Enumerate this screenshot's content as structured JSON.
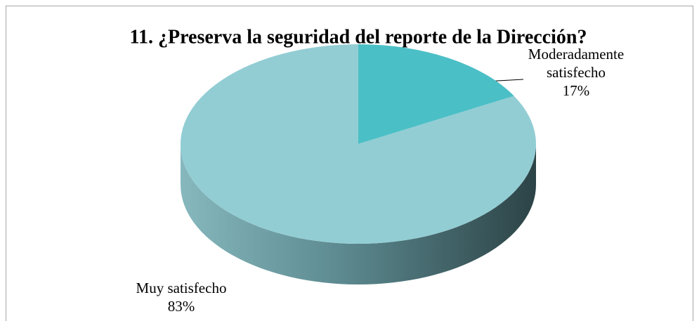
{
  "chart_data": {
    "type": "pie",
    "title": "11. ¿Preserva la seguridad del reporte de la Dirección?",
    "categories": [
      "Moderadamente satisfecho",
      "Muy satisfecho"
    ],
    "values": [
      17,
      83
    ],
    "value_labels": [
      "17%",
      "83%"
    ],
    "colors": [
      "#4bbfc6",
      "#92cdd4"
    ]
  }
}
